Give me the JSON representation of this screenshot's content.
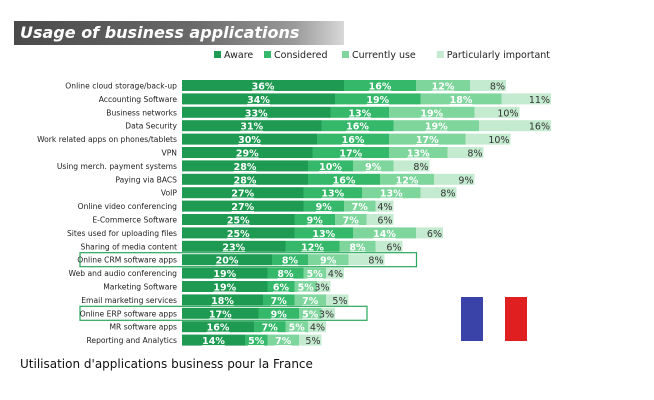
{
  "title": "Usage of business applications",
  "caption": "Utilisation d'applications business pour la France",
  "colors": {
    "aware": "#1e9a52",
    "considered": "#35b86a",
    "currently_use": "#7fd69d",
    "particularly_important": "#c4ebcf",
    "highlight_border": "#29a85c",
    "flag_blue": "#3a44a8",
    "flag_white": "#ffffff",
    "flag_red": "#e02020"
  },
  "chart_data": {
    "type": "bar",
    "orientation": "horizontal",
    "stacked": true,
    "legend_position": "top",
    "categories": [
      "Online cloud storage/back-up",
      "Accounting Software",
      "Business networks",
      "Data Security",
      "Work related apps on phones/tablets",
      "VPN",
      "Using merch. payment systems",
      "Paying via BACS",
      "VoIP",
      "Online video conferencing",
      "E-Commerce Software",
      "Sites used for uploading files",
      "Sharing of media content",
      "Online CRM software apps",
      "Web and audio conferencing",
      "Marketing Software",
      "Email marketing services",
      "Online ERP software apps",
      "MR software apps",
      "Reporting and Analytics"
    ],
    "highlighted": [
      "Online CRM software apps",
      "Online ERP software apps"
    ],
    "series": [
      {
        "name": "Aware",
        "values": [
          36,
          34,
          33,
          31,
          30,
          29,
          28,
          28,
          27,
          27,
          25,
          25,
          23,
          20,
          19,
          19,
          18,
          17,
          16,
          14
        ]
      },
      {
        "name": "Considered",
        "values": [
          16,
          19,
          13,
          16,
          16,
          17,
          10,
          16,
          13,
          9,
          9,
          13,
          12,
          8,
          8,
          6,
          7,
          9,
          7,
          5
        ]
      },
      {
        "name": "Currently use",
        "values": [
          12,
          18,
          19,
          19,
          17,
          13,
          9,
          12,
          13,
          7,
          7,
          14,
          8,
          9,
          5,
          5,
          7,
          5,
          5,
          7
        ]
      },
      {
        "name": "Particularly important",
        "values": [
          8,
          11,
          10,
          16,
          10,
          8,
          8,
          9,
          8,
          4,
          6,
          6,
          6,
          8,
          4,
          3,
          5,
          3,
          4,
          5
        ]
      }
    ],
    "value_suffix": "%"
  }
}
